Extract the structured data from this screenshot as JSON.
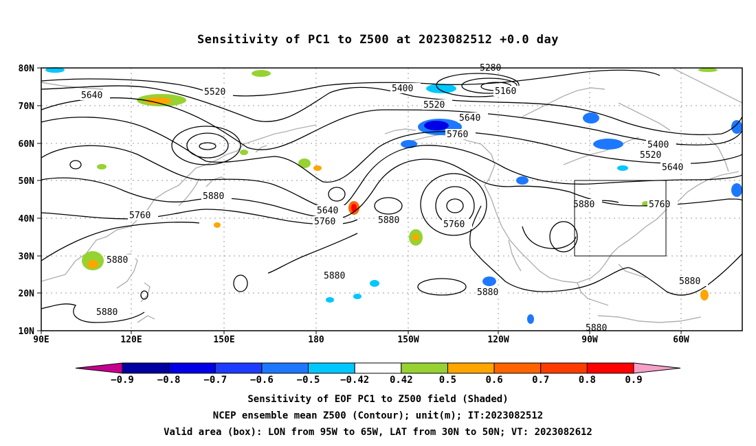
{
  "title": "Sensitivity of PC1 to Z500 at 2023082512 +0.0 day",
  "axes": {
    "lat_labels": [
      "80N",
      "70N",
      "60N",
      "50N",
      "40N",
      "30N",
      "20N",
      "10N"
    ],
    "lon_labels": [
      "90E",
      "120E",
      "150E",
      "180",
      "150W",
      "120W",
      "90W",
      "60W"
    ],
    "lon_range": [
      "90E",
      "35W"
    ],
    "lat_range": [
      "10N",
      "80N"
    ],
    "grid": "dotted"
  },
  "colorbar": {
    "labels": [
      "−0.9",
      "−0.8",
      "−0.7",
      "−0.6",
      "−0.5",
      "−0.42",
      "0.42",
      "0.5",
      "0.6",
      "0.7",
      "0.8",
      "0.9"
    ],
    "colors": [
      "#c4008c",
      "#0000a0",
      "#0000e6",
      "#1c3cff",
      "#1e78ff",
      "#00c8ff",
      "#ffffff",
      "#96d232",
      "#ffa500",
      "#ff6400",
      "#ff3c00",
      "#ff0000",
      "#f5a0c8"
    ]
  },
  "contour_labels": [
    {
      "text": "5640"
    },
    {
      "text": "5520"
    },
    {
      "text": "5400"
    },
    {
      "text": "5280"
    },
    {
      "text": "5160"
    },
    {
      "text": "5520"
    },
    {
      "text": "5640"
    },
    {
      "text": "5760"
    },
    {
      "text": "5400"
    },
    {
      "text": "5520"
    },
    {
      "text": "5640"
    },
    {
      "text": "5760"
    },
    {
      "text": "5880"
    },
    {
      "text": "5880"
    },
    {
      "text": "5760"
    },
    {
      "text": "5640"
    },
    {
      "text": "5760"
    },
    {
      "text": "5880"
    },
    {
      "text": "5760"
    },
    {
      "text": "5880"
    },
    {
      "text": "5880"
    },
    {
      "text": "5880"
    },
    {
      "text": "5880"
    },
    {
      "text": "5880"
    },
    {
      "text": "5880"
    }
  ],
  "valid_area": {
    "lon": [
      "95W",
      "65W"
    ],
    "lat": [
      "30N",
      "50N"
    ]
  },
  "footer": {
    "line1": "Sensitivity of EOF PC1 to Z500 field (Shaded)",
    "line2": "NCEP ensemble mean Z500 (Contour); unit(m); IT:2023082512",
    "line3": "Valid area (box): LON from 95W to 65W, LAT from 30N to 50N; VT: 2023082612"
  }
}
